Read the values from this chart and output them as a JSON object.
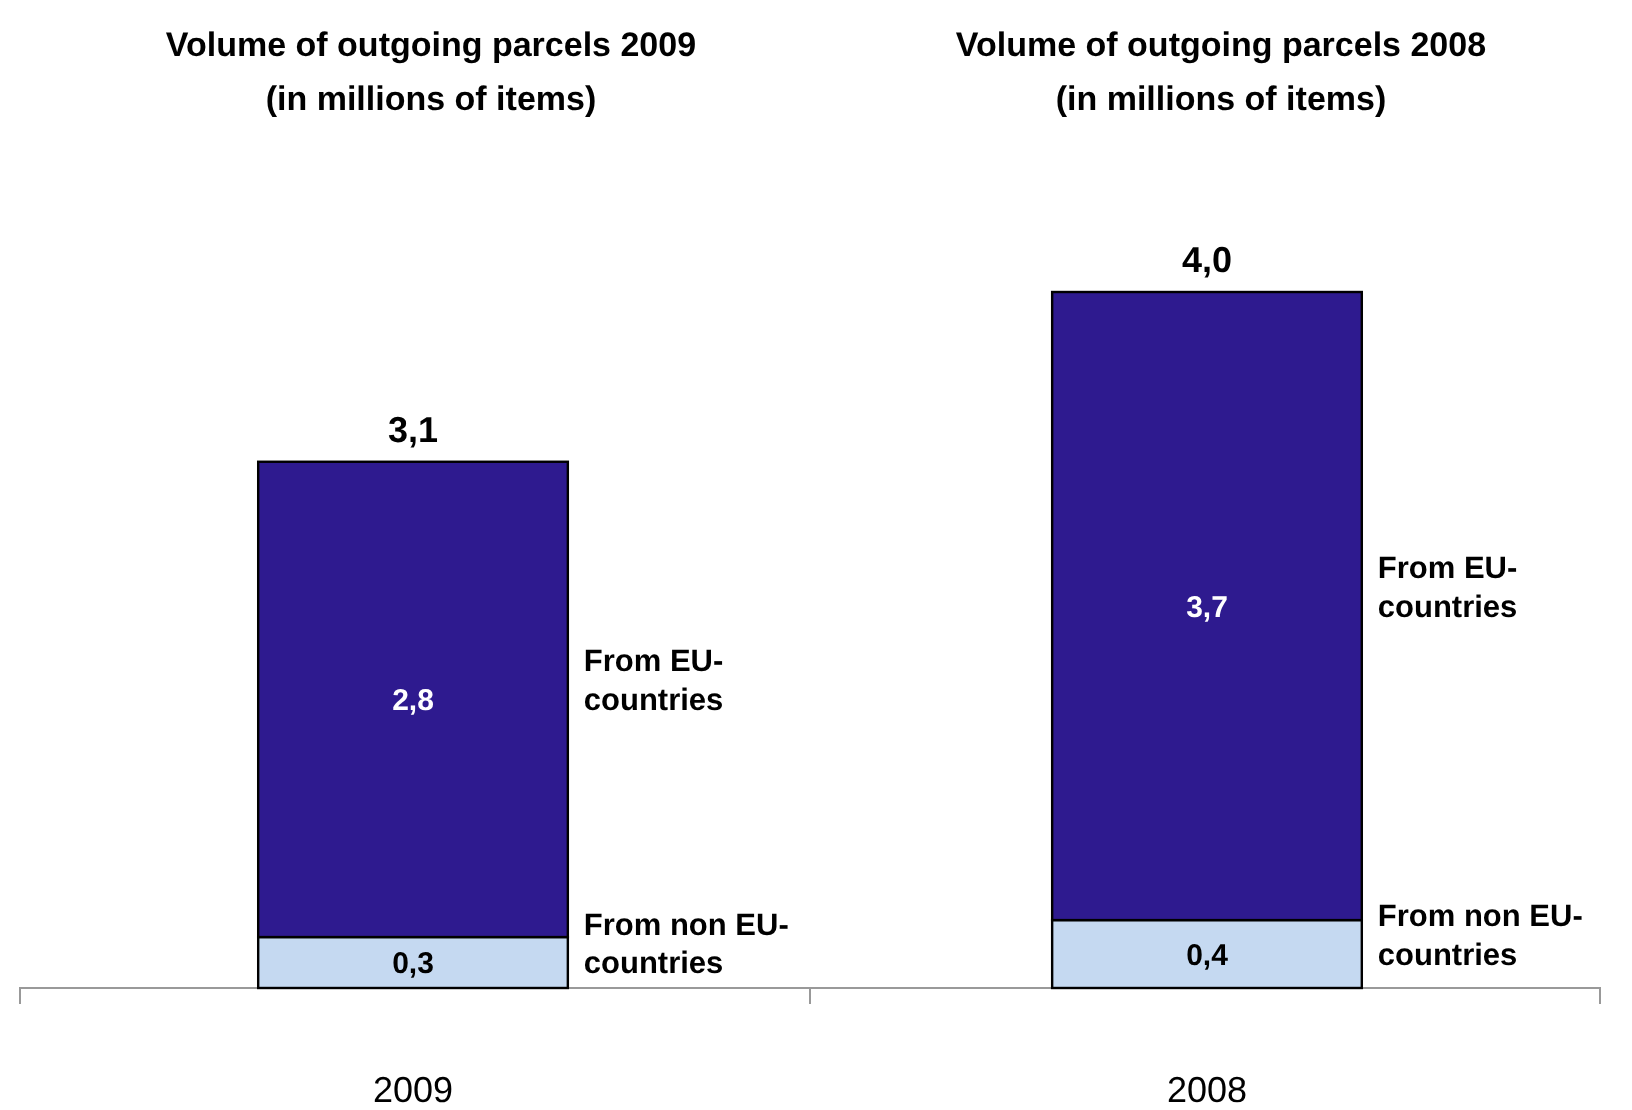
{
  "chart_data": {
    "type": "bar",
    "categories": [
      "2009",
      "2008"
    ],
    "stacked": true,
    "tick_labels": "x",
    "annotations": [
      "Volume of outgoing parcels 2009 (in millions of items)",
      "Volume of outgoing parcels 2008 (in millions of items)"
    ],
    "series": [
      {
        "name": "From non EU-countries",
        "color": "#c5d9f1",
        "values": [
          0.3,
          0.4
        ],
        "value_labels": [
          "0,3",
          "0,4"
        ]
      },
      {
        "name": "From EU-countries",
        "color": "#2e1a8f",
        "values": [
          2.8,
          3.7
        ],
        "value_labels": [
          "2,8",
          "3,7"
        ]
      }
    ],
    "totals": [
      "3,1",
      "4,0"
    ]
  }
}
